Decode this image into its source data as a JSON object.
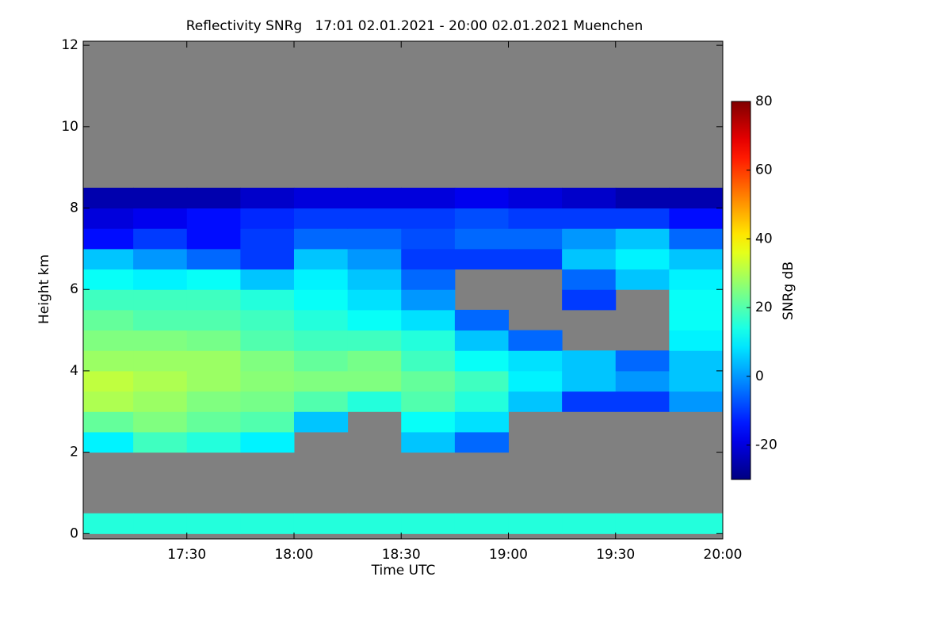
{
  "chart_data": {
    "type": "heatmap",
    "title": "Reflectivity SNRg   17:01 02.01.2021 - 20:00 02.01.2021 Muenchen",
    "x_label": "Time UTC",
    "y_label": "Height km",
    "colorbar_label": "SNRg dB",
    "xlim": [
      17.0167,
      20.0
    ],
    "xticks": [
      {
        "value": 17.5,
        "label": "17:30"
      },
      {
        "value": 18,
        "label": "18:00"
      },
      {
        "value": 18.5,
        "label": "18:30"
      },
      {
        "value": 19,
        "label": "19:00"
      },
      {
        "value": 19.5,
        "label": "19:30"
      },
      {
        "value": 20,
        "label": "20:00"
      }
    ],
    "ylim": [
      -0.13,
      12.1
    ],
    "yticks": [
      0,
      2,
      4,
      6,
      8,
      10,
      12
    ],
    "clim": [
      -30,
      80
    ],
    "cticks": [
      -20,
      0,
      20,
      40,
      60,
      80
    ],
    "colormap": "jet",
    "missing_color": "#808080",
    "x_edges": [
      17.0167,
      17.25,
      17.5,
      17.75,
      18,
      18.25,
      18.5,
      18.75,
      19,
      19.25,
      19.5,
      19.75,
      20.0
    ],
    "y_edges": [
      0,
      0.5,
      1,
      1.5,
      2,
      2.5,
      3,
      3.5,
      4,
      4.5,
      5,
      5.5,
      6,
      6.5,
      7,
      7.5,
      8,
      8.5,
      9,
      9.5,
      10,
      10.5,
      11,
      11.5,
      12
    ],
    "z": [
      [
        15,
        15,
        15,
        15,
        15,
        15,
        15,
        15,
        15,
        15,
        15,
        15
      ],
      [
        null,
        null,
        null,
        null,
        null,
        null,
        null,
        null,
        null,
        null,
        null,
        null
      ],
      [
        null,
        null,
        null,
        null,
        null,
        null,
        null,
        null,
        null,
        null,
        null,
        null
      ],
      [
        null,
        null,
        null,
        null,
        null,
        null,
        null,
        null,
        null,
        null,
        null,
        null
      ],
      [
        10,
        18,
        15,
        10,
        null,
        null,
        5,
        -5,
        null,
        null,
        null,
        null
      ],
      [
        22,
        25,
        22,
        20,
        5,
        null,
        12,
        8,
        null,
        null,
        null,
        null
      ],
      [
        30,
        28,
        25,
        24,
        20,
        15,
        20,
        15,
        5,
        -10,
        -10,
        0
      ],
      [
        32,
        30,
        28,
        26,
        25,
        25,
        22,
        18,
        10,
        5,
        0,
        5
      ],
      [
        28,
        28,
        28,
        25,
        22,
        24,
        18,
        12,
        8,
        5,
        -5,
        5
      ],
      [
        25,
        25,
        24,
        20,
        18,
        18,
        15,
        5,
        -5,
        null,
        null,
        10
      ],
      [
        22,
        20,
        20,
        18,
        15,
        12,
        8,
        -5,
        null,
        null,
        null,
        12
      ],
      [
        18,
        18,
        18,
        15,
        12,
        8,
        0,
        null,
        null,
        -10,
        null,
        12
      ],
      [
        12,
        10,
        12,
        5,
        10,
        5,
        -5,
        null,
        null,
        -5,
        5,
        10
      ],
      [
        5,
        0,
        -5,
        -10,
        5,
        0,
        -10,
        -10,
        -10,
        5,
        10,
        5
      ],
      [
        -15,
        -10,
        -15,
        -10,
        -5,
        -5,
        -8,
        -5,
        -5,
        0,
        5,
        -5
      ],
      [
        -20,
        -18,
        -15,
        -12,
        -10,
        -10,
        -10,
        -8,
        -10,
        -10,
        -10,
        -15
      ],
      [
        -25,
        -25,
        -25,
        -22,
        -20,
        -20,
        -20,
        -18,
        -20,
        -22,
        -25,
        -25
      ],
      [
        null,
        null,
        null,
        null,
        null,
        null,
        null,
        null,
        null,
        null,
        null,
        null
      ],
      [
        null,
        null,
        null,
        null,
        null,
        null,
        null,
        null,
        null,
        null,
        null,
        null
      ],
      [
        null,
        null,
        null,
        null,
        null,
        null,
        null,
        null,
        null,
        null,
        null,
        null
      ],
      [
        null,
        null,
        null,
        null,
        null,
        null,
        null,
        null,
        null,
        null,
        null,
        null
      ],
      [
        null,
        null,
        null,
        null,
        null,
        null,
        null,
        null,
        null,
        null,
        null,
        null
      ],
      [
        null,
        null,
        null,
        null,
        null,
        null,
        null,
        null,
        null,
        null,
        null,
        null
      ],
      [
        null,
        null,
        null,
        null,
        null,
        null,
        null,
        null,
        null,
        null,
        null,
        null
      ]
    ]
  }
}
